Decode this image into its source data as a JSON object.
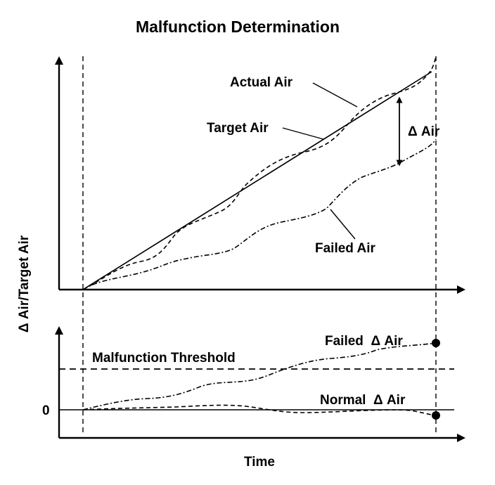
{
  "title": "Malfunction Determination",
  "y_axis_label": "Δ Air/Target Air",
  "x_axis_label": "Time",
  "upper_panel": {
    "actual_air_label": "Actual Air",
    "target_air_label": "Target Air",
    "failed_air_label": "Failed Air",
    "delta_air_label": "Δ Air"
  },
  "lower_panel": {
    "threshold_label": "Malfunction Threshold",
    "failed_delta_label": "Failed  Δ Air",
    "normal_delta_label": "Normal  Δ Air",
    "zero_label": "0"
  },
  "colors": {
    "ink": "#000000",
    "background": "#ffffff"
  }
}
